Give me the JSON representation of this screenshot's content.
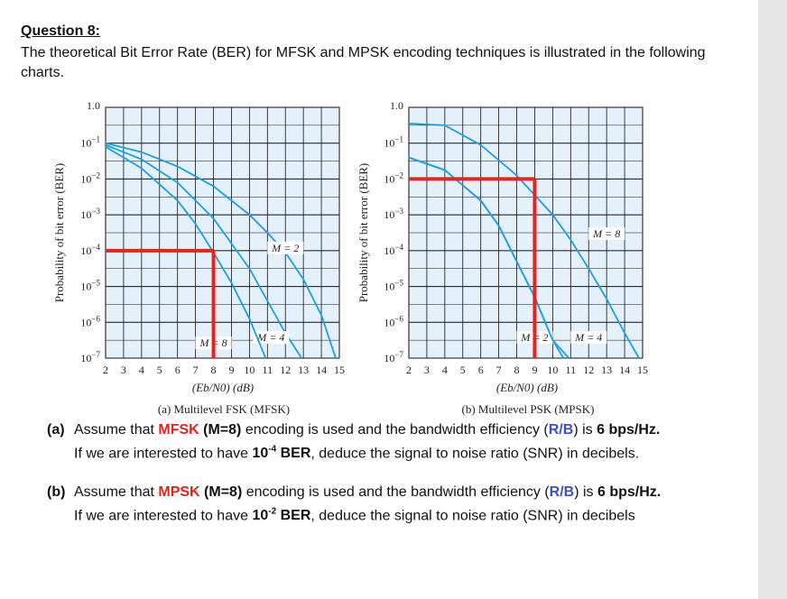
{
  "question": {
    "title": "Question 8:",
    "intro": "The theoretical Bit Error Rate (BER) for MFSK and MPSK encoding techniques is illustrated in the following charts."
  },
  "colors": {
    "grid_fill": "#e4f1fb",
    "grid_line": "#111111",
    "curve": "#1aa0e0",
    "highlight": "#e8231a",
    "emph_red": "#e0241c",
    "emph_blue": "#3a4fd0"
  },
  "chart_data": [
    {
      "type": "line",
      "caption": "(a) Multilevel FSK (MFSK)",
      "ylabel": "Probability of bit error (BER)",
      "xlabel": "(Eb/N0) (dB)",
      "x_ticks": [
        "2",
        "3",
        "4",
        "5",
        "6",
        "7",
        "8",
        "9",
        "10",
        "11",
        "12",
        "13",
        "14",
        "15"
      ],
      "y_ticks": [
        "1.0",
        "10−1",
        "10−2",
        "10−3",
        "10−4",
        "10−5",
        "10−6",
        "10−7"
      ],
      "xlim": [
        2,
        15
      ],
      "ylim_log10": [
        -7,
        0
      ],
      "y_scale": "log",
      "grid": true,
      "series": [
        {
          "name": "M = 2",
          "label_at": {
            "x": 12.0,
            "log10y": -4.0
          },
          "x": [
            2,
            4,
            6,
            8,
            10,
            11,
            12,
            13,
            14,
            14.8
          ],
          "log10y": [
            -1.0,
            -1.25,
            -1.65,
            -2.2,
            -3.0,
            -3.5,
            -4.05,
            -4.8,
            -5.8,
            -7.0
          ]
        },
        {
          "name": "M = 4",
          "label_at": {
            "x": 11.2,
            "log10y": -6.5
          },
          "x": [
            2,
            4,
            6,
            8,
            10,
            11,
            12,
            12.9
          ],
          "log10y": [
            -1.05,
            -1.45,
            -2.1,
            -3.1,
            -4.5,
            -5.4,
            -6.3,
            -7.0
          ]
        },
        {
          "name": "M = 8",
          "label_at": {
            "x": 8.0,
            "log10y": -6.65
          },
          "x": [
            2,
            4,
            6,
            7,
            8,
            9,
            10,
            10.9
          ],
          "log10y": [
            -1.1,
            -1.7,
            -2.6,
            -3.25,
            -4.05,
            -4.9,
            -5.9,
            -7.0
          ]
        }
      ],
      "highlight": {
        "x": 8.0,
        "log10y": -4.0
      }
    },
    {
      "type": "line",
      "caption": "(b) Multilevel PSK (MPSK)",
      "ylabel": "Probability of bit error (BER)",
      "xlabel": "(Eb/N0) (dB)",
      "x_ticks": [
        "2",
        "3",
        "4",
        "5",
        "6",
        "7",
        "8",
        "9",
        "10",
        "11",
        "12",
        "13",
        "14",
        "15"
      ],
      "y_ticks": [
        "1.0",
        "10−1",
        "10−2",
        "10−3",
        "10−4",
        "10−5",
        "10−6",
        "10−7"
      ],
      "xlim": [
        2,
        15
      ],
      "ylim_log10": [
        -7,
        0
      ],
      "y_scale": "log",
      "grid": true,
      "series": [
        {
          "name": "M = 2",
          "label_at": {
            "x": 9.0,
            "log10y": -6.5
          },
          "x": [
            2,
            4,
            6,
            7,
            8,
            9,
            10,
            10.6
          ],
          "log10y": [
            -1.4,
            -1.75,
            -2.6,
            -3.3,
            -4.3,
            -5.3,
            -6.5,
            -7.0
          ]
        },
        {
          "name": "M = 4",
          "label_at": {
            "x": 12.0,
            "log10y": -6.5
          },
          "x": [
            2,
            4,
            6,
            7,
            8,
            9,
            10,
            10.9
          ],
          "log10y": [
            -1.4,
            -1.75,
            -2.6,
            -3.3,
            -4.3,
            -5.3,
            -6.5,
            -7.0
          ]
        },
        {
          "name": "M = 8",
          "label_at": {
            "x": 13.0,
            "log10y": -3.6
          },
          "x": [
            2,
            4,
            6,
            8,
            10,
            11,
            12,
            13,
            14,
            14.8
          ],
          "log10y": [
            -0.45,
            -0.5,
            -1.05,
            -1.9,
            -3.0,
            -3.7,
            -4.5,
            -5.35,
            -6.3,
            -7.0
          ]
        }
      ],
      "highlight": {
        "x": 9.0,
        "log10y": -2.0
      }
    }
  ],
  "parts": {
    "a": {
      "tag": "(a)",
      "t1": "Assume that ",
      "scheme": "MFSK",
      "t2": " (M=8)",
      "t3": " encoding is used and the bandwidth efficiency (",
      "rb": "R/B",
      "t4": ") is ",
      "eff": "6 bps/Hz.",
      "l2_t1": "If we are interested to have ",
      "ber_base": "10",
      "ber_exp": "-4",
      "ber_label": " BER",
      "l2_t2": ", deduce the signal to noise ratio (SNR) in decibels."
    },
    "b": {
      "tag": "(b)",
      "t1": "Assume that ",
      "scheme": "MPSK",
      "t2": " (M=8)",
      "t3": " encoding is used and the bandwidth efficiency (",
      "rb": "R/B",
      "t4": ") is ",
      "eff": "6 bps/Hz.",
      "l2_t1": "If we are interested to have ",
      "ber_base": "10",
      "ber_exp": "-2",
      "ber_label": " BER",
      "l2_t2": ", deduce the signal to noise ratio (SNR) in decibels"
    }
  }
}
